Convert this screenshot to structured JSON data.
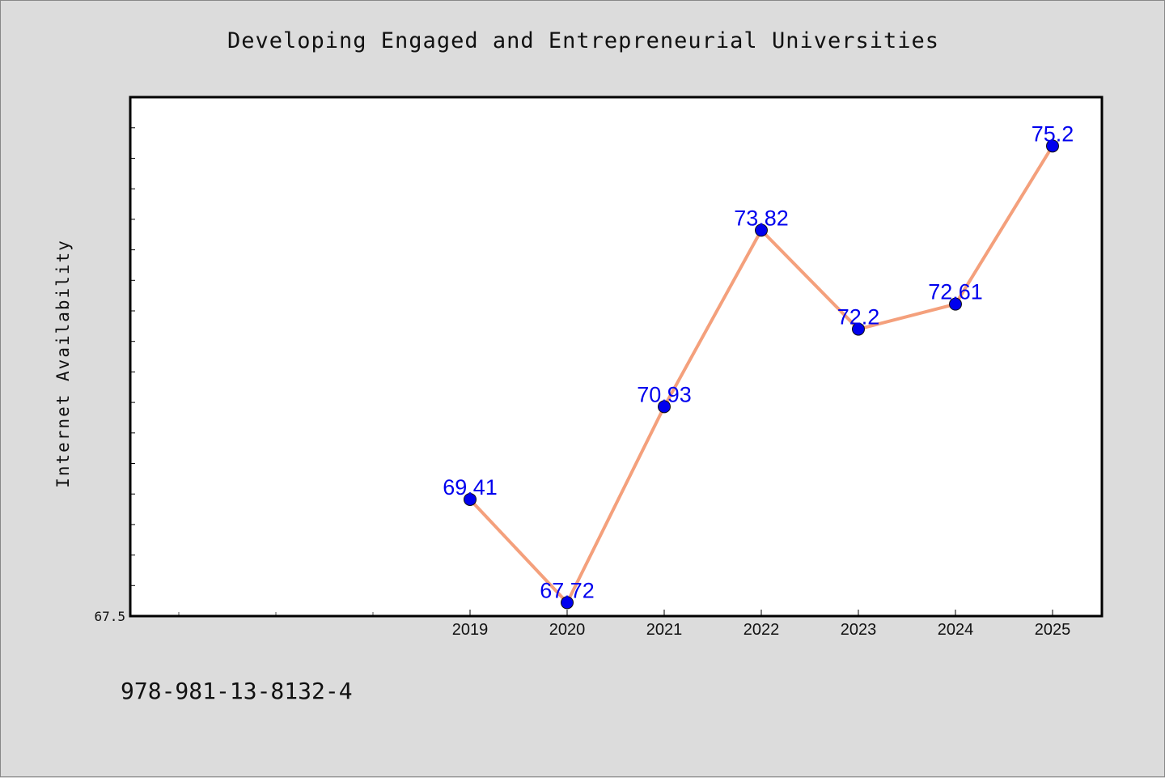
{
  "chart_data": {
    "type": "line",
    "title": "Developing Engaged and Entrepreneurial Universities",
    "xlabel": "",
    "ylabel": "Internet Availability",
    "categories": [
      "2019",
      "2020",
      "2021",
      "2022",
      "2023",
      "2024",
      "2025"
    ],
    "series": [
      {
        "values": [
          69.41,
          67.72,
          70.93,
          73.82,
          72.2,
          72.61,
          75.2
        ],
        "labels": [
          "69.41",
          "67.72",
          "70.93",
          "73.82",
          "72.2",
          "72.61",
          "75.2"
        ],
        "line_color": "#f4a07c",
        "marker_color": "#0000ee",
        "label_color": "#0000ee"
      }
    ],
    "y_tick_label": "67.5",
    "ylim": [
      67.5,
      76.0
    ],
    "grid": false,
    "legend": "none"
  },
  "footer": {
    "code": "978-981-13-8132-4"
  }
}
